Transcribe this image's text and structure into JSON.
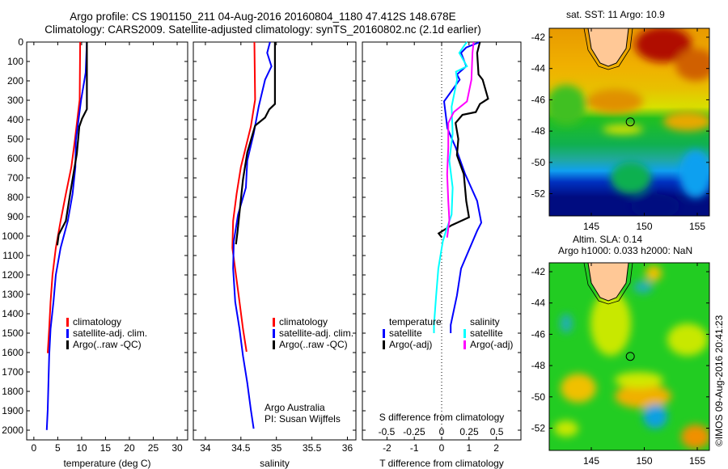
{
  "header": {
    "title_line1": "Argo profile: CS 1901150_211 04-Aug-2016 20160804_1180 47.412S 148.678E",
    "title_line2": "Climatology: CARS2009. Satellite-adjusted climatology: synTS_20160802.nc (2.1d earlier)"
  },
  "colors": {
    "climatology": "#ff0000",
    "satellite": "#0000ff",
    "argo": "#000000",
    "sal_satellite": "#00ffff",
    "sal_argo": "#ff00ff"
  },
  "chart_data": [
    {
      "type": "line",
      "xlabel": "temperature (deg C)",
      "ylabel": "",
      "xlim": [
        -1.5,
        32.2
      ],
      "ylim": [
        2000,
        0
      ],
      "xticks": [
        "0",
        "5",
        "10",
        "15",
        "20",
        "25",
        "30"
      ],
      "yticks": [
        "0",
        "100",
        "200",
        "300",
        "400",
        "500",
        "600",
        "700",
        "800",
        "900",
        "1000",
        "1100",
        "1200",
        "1300",
        "1400",
        "1500",
        "1600",
        "1700",
        "1800",
        "1900",
        "2000"
      ],
      "legend": [
        "climatology",
        "satellite-adj. clim.",
        "Argo(..raw -QC)"
      ],
      "series": [
        {
          "name": "climatology",
          "color": "#ff0000",
          "depth": [
            0,
            297,
            505,
            644,
            783,
            922,
            1061,
            1200,
            1339,
            1478,
            1603
          ],
          "values": [
            9.7,
            9.6,
            8.6,
            7.85,
            6.7,
            5.6,
            4.6,
            3.9,
            3.5,
            3.2,
            2.9
          ]
        },
        {
          "name": "satellite-adj. clim.",
          "color": "#0000ff",
          "depth": [
            0,
            158,
            297,
            505,
            644,
            783,
            922,
            1061,
            1200,
            1339,
            1478,
            1617,
            1756,
            1894,
            1999
          ],
          "values": [
            11.1,
            10.85,
            9.9,
            8.8,
            8.7,
            8.1,
            7.1,
            5.6,
            4.6,
            4.1,
            3.5,
            3.2,
            3.05,
            2.9,
            2.7
          ]
        },
        {
          "name": "Argo(..raw -QC)",
          "color": "#000000",
          "depth": [
            0,
            346,
            394,
            436,
            575,
            783,
            922,
            992,
            1047
          ],
          "values": [
            11.1,
            11.1,
            10.1,
            9.5,
            9.0,
            7.6,
            6.7,
            5.2,
            4.9
          ]
        }
      ]
    },
    {
      "type": "line",
      "xlabel": "salinity",
      "xlim": [
        33.83,
        36.12
      ],
      "ylim": [
        2000,
        0
      ],
      "xticks": [
        "34",
        "34.5",
        "35",
        "35.5",
        "36"
      ],
      "legend": [
        "climatology",
        "satellite-adj. clim.",
        "Argo(..raw -QC)"
      ],
      "annotation": [
        "Argo Australia",
        "PI: Susan Wijffels"
      ],
      "series": [
        {
          "name": "climatology",
          "color": "#ff0000",
          "depth": [
            0,
            297,
            436,
            644,
            783,
            922,
            1061,
            1200,
            1339,
            1478,
            1596
          ],
          "values": [
            34.69,
            34.7,
            34.64,
            34.5,
            34.44,
            34.39,
            34.38,
            34.43,
            34.48,
            34.53,
            34.58
          ]
        },
        {
          "name": "satellite-adj. clim.",
          "color": "#0000ff",
          "depth": [
            0,
            56,
            125,
            194,
            333,
            472,
            611,
            750,
            889,
            1028,
            1167,
            1339,
            1478,
            1617,
            1756,
            1894,
            1992
          ],
          "values": [
            34.91,
            34.87,
            34.93,
            34.84,
            34.75,
            34.68,
            34.59,
            34.57,
            34.46,
            34.4,
            34.39,
            34.42,
            34.48,
            34.53,
            34.59,
            34.64,
            34.68
          ]
        },
        {
          "name": "Argo(..raw -QC)",
          "color": "#000000",
          "depth": [
            0,
            319,
            347,
            389,
            431,
            569,
            708,
            847,
            986,
            1042
          ],
          "values": [
            34.98,
            34.98,
            34.9,
            34.84,
            34.7,
            34.59,
            34.53,
            34.49,
            34.45,
            34.43
          ]
        }
      ]
    },
    {
      "type": "line",
      "xlabel": "T difference from climatology",
      "x2label": "S difference from climatology",
      "xlim": [
        -2.9,
        2.9
      ],
      "x2lim": [
        -0.72,
        0.72
      ],
      "ylim": [
        2000,
        0
      ],
      "xticks": [
        "-2",
        "-1",
        "0",
        "1",
        "2"
      ],
      "x2ticks": [
        "-0.5",
        "-0.25",
        "0",
        "0.25",
        "0.5"
      ],
      "legend_temperature": {
        "heading": "temperature",
        "items": [
          "satellite",
          "Argo(-adj)"
        ]
      },
      "legend_salinity": {
        "heading": "salinity",
        "items": [
          "satellite",
          "Argo(-adj)"
        ]
      },
      "series": [
        {
          "name": "temperature satellite",
          "axis": "T",
          "color": "#0000ff",
          "depth": [
            0,
            28,
            56,
            125,
            167,
            194,
            306,
            444,
            542,
            681,
            819,
            931,
            972,
            1167,
            1306,
            1458,
            1500
          ],
          "values": [
            1.4,
            0.9,
            0.71,
            0.9,
            0.56,
            0.66,
            0.09,
            0.21,
            0.51,
            0.86,
            1.3,
            1.45,
            1.3,
            0.71,
            0.56,
            0.33,
            0.33
          ]
        },
        {
          "name": "temperature Argo(-adj)",
          "axis": "T",
          "color": "#000000",
          "depth": [
            0,
            56,
            167,
            194,
            292,
            319,
            361,
            375,
            417,
            500,
            583,
            681,
            819,
            903,
            944,
            986,
            1007
          ],
          "values": [
            1.4,
            1.3,
            1.35,
            1.5,
            1.7,
            1.4,
            1.25,
            0.76,
            0.51,
            0.61,
            0.56,
            0.81,
            0.9,
            1.0,
            0.36,
            -0.11,
            0.01
          ]
        },
        {
          "name": "salinity satellite",
          "axis": "S",
          "color": "#00ffff",
          "depth": [
            0,
            14,
            56,
            125,
            153,
            194,
            333,
            472,
            611,
            750,
            889,
            972,
            1028,
            1167,
            1306,
            1458,
            1500
          ],
          "values": [
            0.23,
            0.21,
            0.16,
            0.23,
            0.13,
            0.14,
            0.09,
            0.1,
            0.07,
            0.1,
            0.09,
            0.04,
            0.01,
            -0.03,
            -0.05,
            -0.07,
            -0.07
          ]
        },
        {
          "name": "salinity Argo(-adj)",
          "axis": "S",
          "color": "#ff00ff",
          "depth": [
            0,
            56,
            194,
            306,
            361,
            417,
            542,
            681,
            819,
            917,
            1007
          ],
          "values": [
            0.29,
            0.28,
            0.27,
            0.23,
            0.11,
            0.06,
            0.06,
            0.05,
            0.06,
            0.07,
            0.05
          ]
        }
      ]
    }
  ],
  "maps": {
    "sst": {
      "title": "sat. SST: 11 Argo: 10.9",
      "yticks": [
        "-42",
        "-44",
        "-46",
        "-48",
        "-50",
        "-52"
      ],
      "xticks": [
        "145",
        "150",
        "155"
      ],
      "argo_lon": 148.678,
      "argo_lat": -47.412
    },
    "sla": {
      "title_line1": "Altim. SLA: 0.14",
      "title_line2": "Argo h1000: 0.033 h2000: NaN",
      "yticks": [
        "-42",
        "-44",
        "-46",
        "-48",
        "-50",
        "-52"
      ],
      "xticks": [
        "145",
        "150",
        "155"
      ],
      "argo_lon": 148.678,
      "argo_lat": -47.412
    }
  },
  "credit": "©IMOS 09-Aug-2016 20:41:23"
}
